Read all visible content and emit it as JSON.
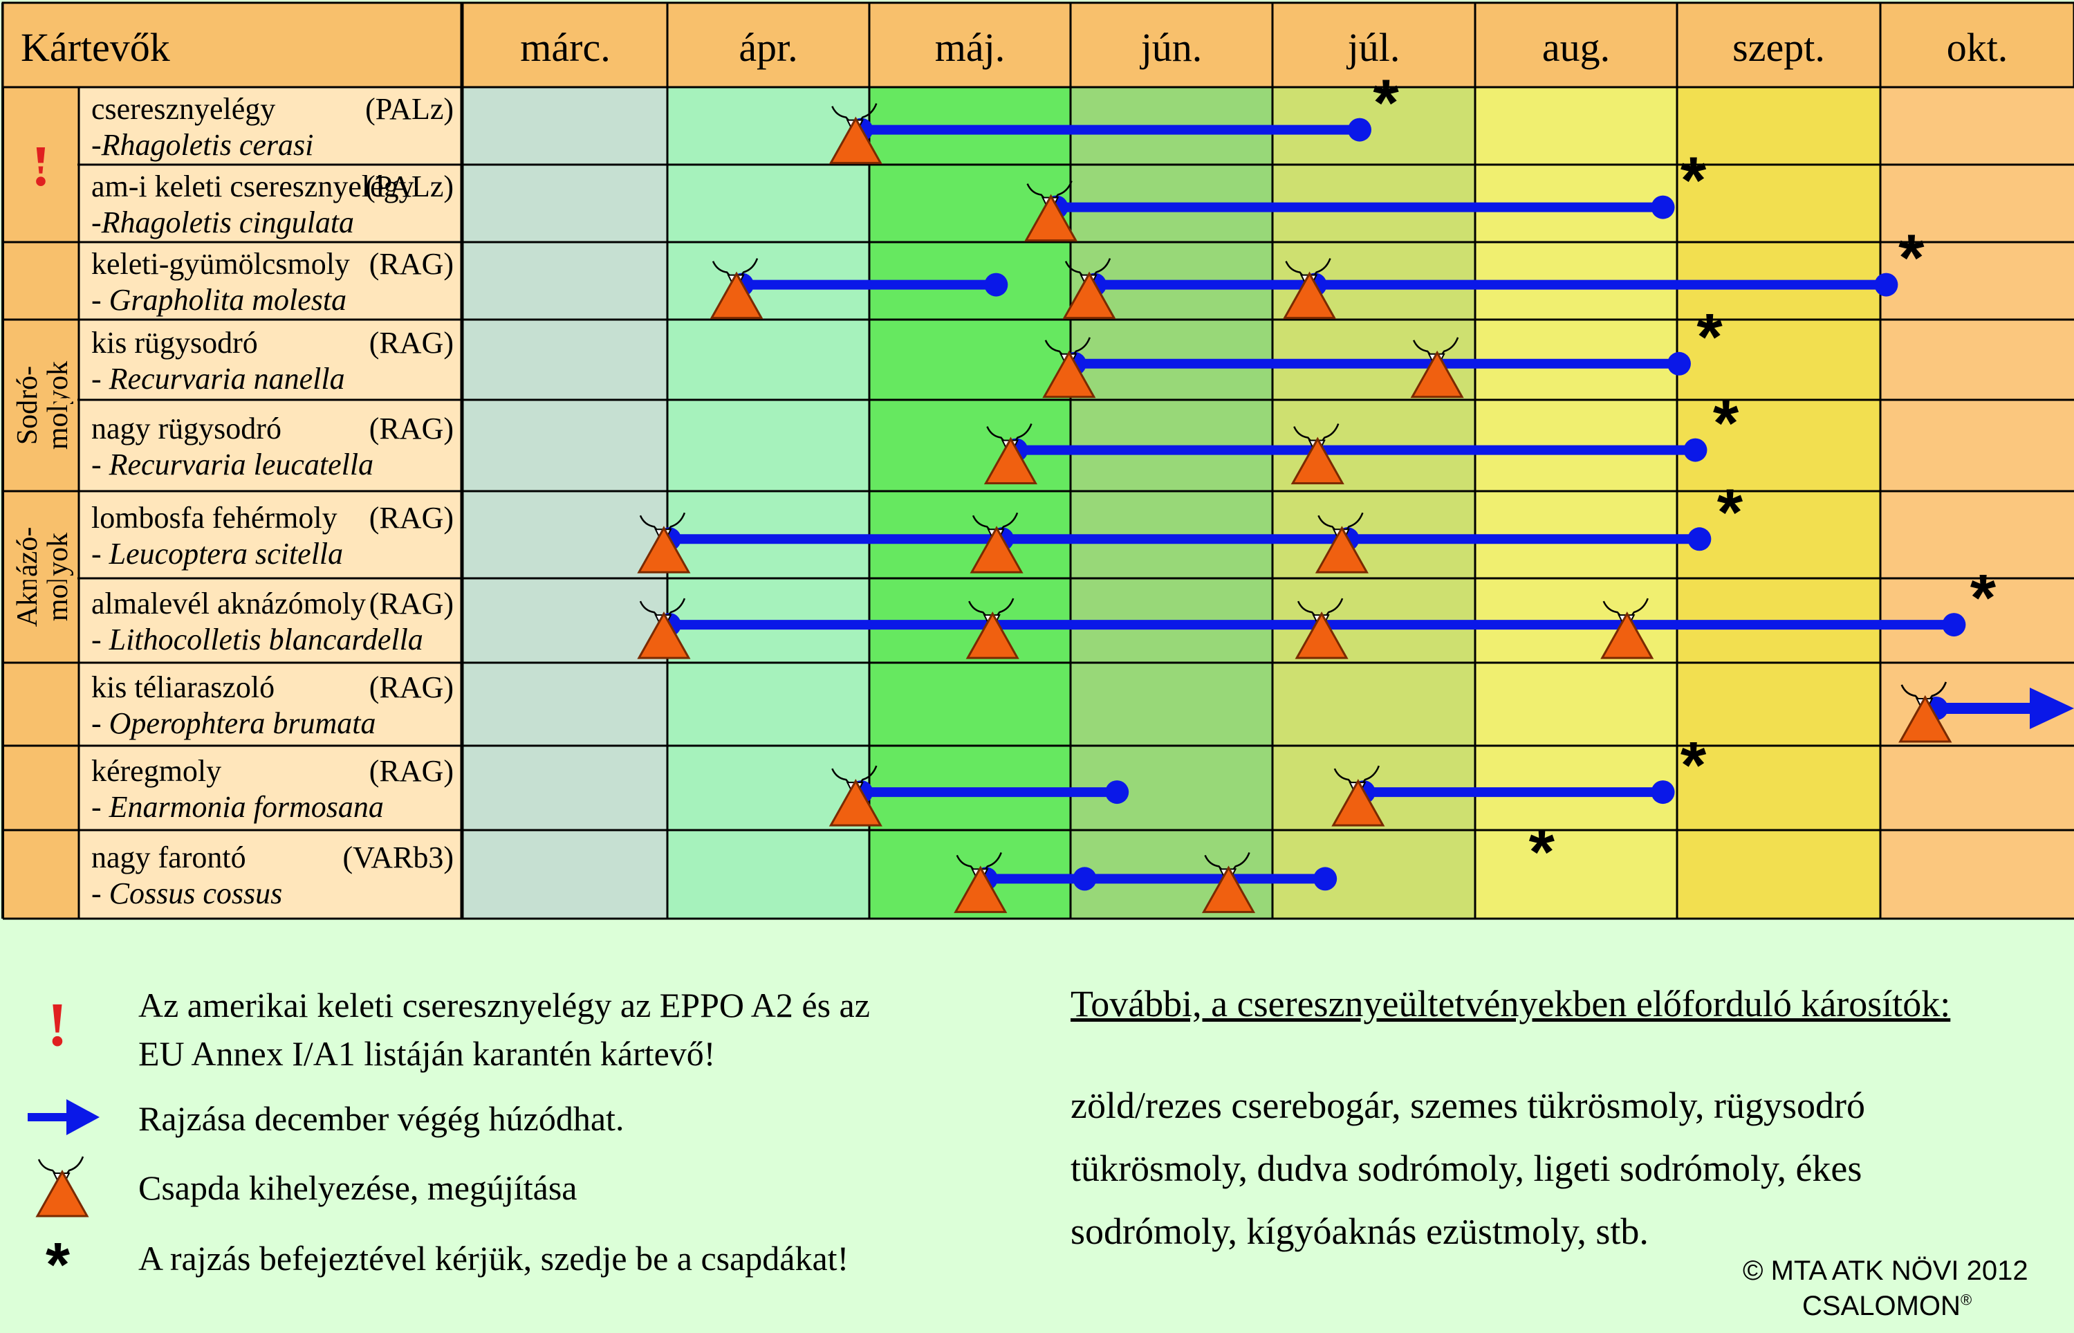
{
  "header": {
    "title": "Kártevők",
    "months": [
      "márc.",
      "ápr.",
      "máj.",
      "jún.",
      "júl.",
      "aug.",
      "szept.",
      "okt."
    ]
  },
  "colors": {
    "bar": "#0a18e8",
    "trap": "#f06010",
    "warning": "#e02020",
    "label_bg": "#ffe6bb",
    "group_bg": "#f8c06c",
    "header_bg": "#f8c06c",
    "month_bg": [
      "#c6e0d2",
      "#a6f2bc",
      "#66e860",
      "#98d878",
      "#cee070",
      "#f0ef70",
      "#f2df50",
      "#fbc77e"
    ],
    "legend_bg": "#dcffd8"
  },
  "groups": [
    {
      "label": "",
      "symbol": "!",
      "rows": [
        0,
        1
      ]
    },
    {
      "label": "",
      "symbol": "",
      "rows": [
        2
      ]
    },
    {
      "label": "Sodró-\nmolyok",
      "symbol": "",
      "rows": [
        3,
        4
      ]
    },
    {
      "label": "Aknázó-\nmolyok",
      "symbol": "",
      "rows": [
        5,
        6
      ]
    },
    {
      "label": "",
      "symbol": "",
      "rows": [
        7
      ]
    },
    {
      "label": "",
      "symbol": "",
      "rows": [
        8
      ]
    },
    {
      "label": "",
      "symbol": "",
      "rows": [
        9
      ]
    }
  ],
  "pests": [
    {
      "name": "cseresznyelégy",
      "latin": "-Rhagoletis cerasi",
      "trap": "(PALz)",
      "bars": [
        [
          4.96,
          7.43
        ]
      ],
      "traps": [
        4.96
      ],
      "star": 7.56,
      "arrow": false
    },
    {
      "name": "am-i keleti cseresznyelégy",
      "latin": "-Rhagoletis cingulata",
      "trap": "(PALz)",
      "bars": [
        [
          5.93,
          8.93
        ]
      ],
      "traps": [
        5.93
      ],
      "star": 9.08,
      "arrow": false
    },
    {
      "name": "keleti-gyümölcsmoly",
      "latin": "- Grapholita molesta",
      "trap": "(RAG)",
      "bars": [
        [
          4.37,
          5.63
        ],
        [
          6.12,
          7.21
        ],
        [
          7.21,
          10.03
        ]
      ],
      "traps": [
        4.37,
        6.12,
        7.21
      ],
      "star": 10.16,
      "arrow": false
    },
    {
      "name": "kis rügysodró",
      "latin": "- Recurvaria nanella",
      "trap": "(RAG)",
      "bars": [
        [
          6.02,
          9.01
        ]
      ],
      "traps": [
        6.02,
        7.84
      ],
      "star": 9.16,
      "arrow": false
    },
    {
      "name": "nagy rügysodró",
      "latin": "- Recurvaria leucatella",
      "trap": "(RAG)",
      "bars": [
        [
          5.73,
          9.09
        ]
      ],
      "traps": [
        5.73,
        7.25
      ],
      "star": 9.24,
      "arrow": false
    },
    {
      "name": "lombosfa fehérmoly",
      "latin": "- Leucoptera scitella",
      "trap": "(RAG)",
      "bars": [
        [
          4.01,
          5.66
        ],
        [
          5.66,
          7.37
        ],
        [
          7.37,
          9.11
        ]
      ],
      "traps": [
        4.01,
        5.66,
        7.37
      ],
      "star": 9.26,
      "arrow": false
    },
    {
      "name": "almalevél aknázómoly",
      "latin": "- Lithocolletis blancardella",
      "trap": "(RAG)",
      "bars": [
        [
          4.01,
          10.38
        ]
      ],
      "traps": [
        4.01,
        5.64,
        7.27,
        8.78
      ],
      "star": 10.53,
      "arrow": false
    },
    {
      "name": "kis téliaraszoló",
      "latin": "- Operophtera brumata",
      "trap": "(RAG)",
      "bars": [],
      "traps": [
        10.26
      ],
      "star": null,
      "arrow": true
    },
    {
      "name": "kéregmoly",
      "latin": "- Enarmonia formosana",
      "trap": "(RAG)",
      "bars": [
        [
          4.96,
          6.23
        ],
        [
          7.45,
          8.93
        ]
      ],
      "traps": [
        4.96,
        7.45
      ],
      "star": 9.08,
      "arrow": false
    },
    {
      "name": "nagy farontó",
      "latin": "- Cossus cossus",
      "trap": "(VARb3)",
      "bars": [
        [
          5.58,
          7.26
        ],
        [
          6.07,
          6.07
        ]
      ],
      "traps": [
        5.58,
        6.81
      ],
      "star": 8.33,
      "arrow": false
    }
  ],
  "legend": {
    "warning": "Az amerikai keleti cseresznyelégy az EPPO A2 és az\nEU Annex I/A1 listáján karantén kártevő!",
    "arrow": "Rajzása december végég húzódhat.",
    "trap": "Csapda kihelyezése, megújítása",
    "star": "A rajzás befejeztével kérjük, szedje be a csapdákat!"
  },
  "further": {
    "title": "További, a cseresznyeültetvényekben előforduló károsítók:",
    "lines": [
      "zöld/rezes cserebogár, szemes tükrösmoly, rügysodró",
      "tükrösmoly, dudva sodrómoly,  ligeti sodrómoly, ékes",
      "sodrómoly, kígyóaknás ezüstmoly, stb."
    ]
  },
  "copyright": "© MTA ATK NÖVI 2012",
  "brand": "CSALOMON",
  "brand_mark": "®"
}
